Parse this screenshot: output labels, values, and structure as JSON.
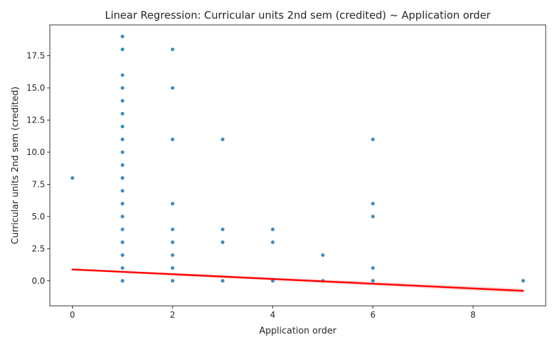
{
  "chart_data": {
    "type": "scatter",
    "title": "Linear Regression: Curricular units 2nd sem (credited) ~ Application order",
    "xlabel": "Application order",
    "ylabel": "Curricular units 2nd sem (credited)",
    "xlim": [
      -0.45,
      9.45
    ],
    "ylim": [
      -1.95,
      19.9
    ],
    "xticks": [
      0,
      2,
      4,
      6,
      8
    ],
    "yticks": [
      0.0,
      2.5,
      5.0,
      7.5,
      10.0,
      12.5,
      15.0,
      17.5
    ],
    "grid": false,
    "legend": "none",
    "points_color": "#1f77b4",
    "line_color": "#ff0000",
    "points": [
      [
        0,
        8
      ],
      [
        1,
        0
      ],
      [
        1,
        1
      ],
      [
        1,
        2
      ],
      [
        1,
        3
      ],
      [
        1,
        4
      ],
      [
        1,
        5
      ],
      [
        1,
        6
      ],
      [
        1,
        7
      ],
      [
        1,
        8
      ],
      [
        1,
        9
      ],
      [
        1,
        10
      ],
      [
        1,
        11
      ],
      [
        1,
        12
      ],
      [
        1,
        13
      ],
      [
        1,
        14
      ],
      [
        1,
        15
      ],
      [
        1,
        16
      ],
      [
        1,
        18
      ],
      [
        1,
        19
      ],
      [
        2,
        0
      ],
      [
        2,
        1
      ],
      [
        2,
        2
      ],
      [
        2,
        3
      ],
      [
        2,
        4
      ],
      [
        2,
        6
      ],
      [
        2,
        11
      ],
      [
        2,
        15
      ],
      [
        2,
        18
      ],
      [
        3,
        0
      ],
      [
        3,
        3
      ],
      [
        3,
        4
      ],
      [
        3,
        11
      ],
      [
        4,
        0
      ],
      [
        4,
        3
      ],
      [
        4,
        4
      ],
      [
        5,
        0
      ],
      [
        5,
        2
      ],
      [
        6,
        0
      ],
      [
        6,
        1
      ],
      [
        6,
        5
      ],
      [
        6,
        6
      ],
      [
        6,
        11
      ],
      [
        9,
        0
      ]
    ],
    "regression_line": {
      "x": [
        0,
        9
      ],
      "y": [
        0.88,
        -0.78
      ]
    }
  }
}
